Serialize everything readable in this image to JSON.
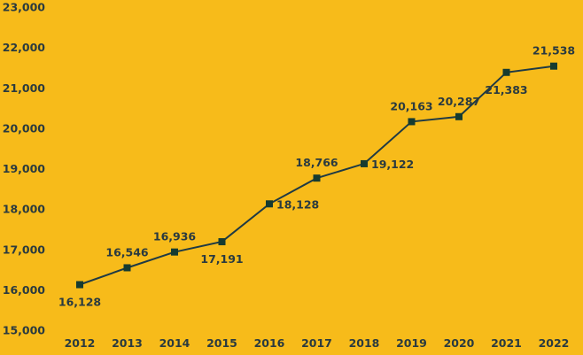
{
  "colors": {
    "background": "#f7bb1a",
    "line": "#1f3a44",
    "marker": "#163b30",
    "text": "#2a3a3f"
  },
  "chart_data": {
    "type": "line",
    "title": "",
    "xlabel": "",
    "ylabel": "",
    "categories": [
      "2012",
      "2013",
      "2014",
      "2015",
      "2016",
      "2017",
      "2018",
      "2019",
      "2020",
      "2021",
      "2022"
    ],
    "series": [
      {
        "values": [
          16128,
          16546,
          16936,
          17191,
          18128,
          18766,
          19122,
          20163,
          20287,
          21383,
          21538
        ],
        "labels": [
          "16,128",
          "16,546",
          "16,936",
          "17,191",
          "18,128",
          "18,766",
          "19,122",
          "20,163",
          "20,287",
          "21,383",
          "21,538"
        ],
        "label_positions": [
          "below",
          "above",
          "above",
          "below",
          "right",
          "above",
          "right",
          "above",
          "above",
          "below",
          "above"
        ]
      }
    ],
    "ylim": [
      15000,
      23000
    ],
    "yticks": [
      15000,
      16000,
      17000,
      18000,
      19000,
      20000,
      21000,
      22000,
      23000
    ],
    "ytick_labels": [
      "15,000",
      "16,000",
      "17,000",
      "18,000",
      "19,000",
      "20,000",
      "21,000",
      "22,000",
      "23,000"
    ],
    "grid": false,
    "legend": "none",
    "marker": "square"
  }
}
